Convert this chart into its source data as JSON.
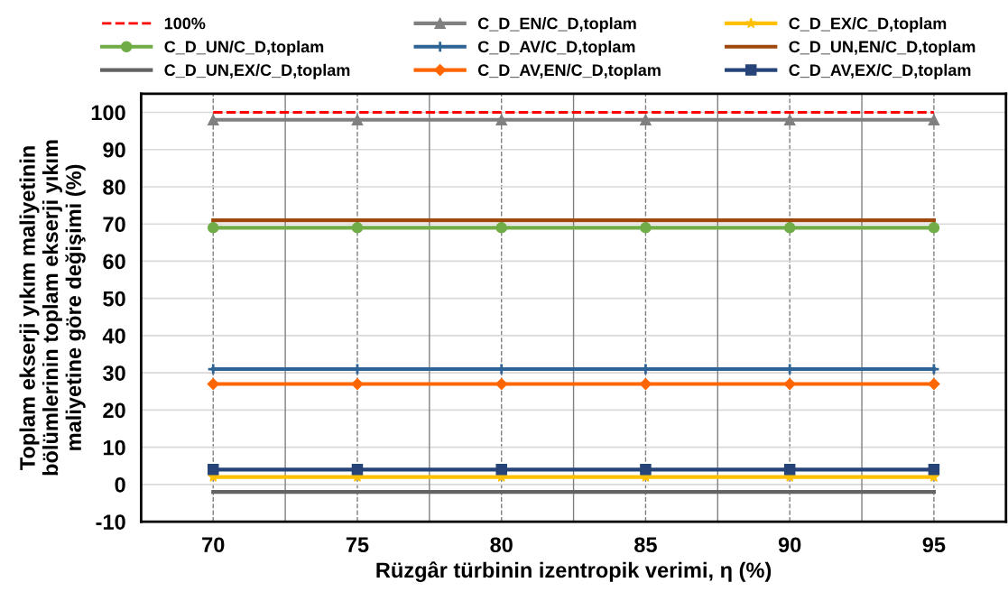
{
  "chart_data": {
    "type": "line",
    "xlabel": "Rüzgâr türbinin izentropik verimi, η (%)",
    "ylabel": "Toplam ekserji yıkım maliyetinin\nbölümlerinin toplam ekserji yıkım\nmaliyetine göre değişimi (%)",
    "x": [
      70,
      75,
      80,
      85,
      90,
      95
    ],
    "xlim": [
      67.5,
      97.5
    ],
    "xticks": [
      70,
      75,
      80,
      85,
      90,
      95
    ],
    "ylim": [
      -10,
      105
    ],
    "yticks": [
      -10,
      0,
      10,
      20,
      30,
      40,
      50,
      60,
      70,
      80,
      90,
      100
    ],
    "grid": true,
    "legend": "top",
    "series": [
      {
        "name": "100%",
        "color": "#ff0000",
        "line_style": "dashed",
        "marker": "none",
        "values": [
          100,
          100,
          100,
          100,
          100,
          100
        ]
      },
      {
        "name": "C_D_UN/C_D,toplam",
        "color": "#70ad47",
        "marker": "circle",
        "values": [
          69,
          69,
          69,
          69,
          69,
          69
        ]
      },
      {
        "name": "C_D_UN,EX/C_D,toplam",
        "color": "#636363",
        "marker": "none",
        "values": [
          -2,
          -2,
          -2,
          -2,
          -2,
          -2
        ]
      },
      {
        "name": "C_D_EN/C_D,toplam",
        "color": "#808080",
        "marker": "triangle",
        "values": [
          98,
          98,
          98,
          98,
          98,
          98
        ]
      },
      {
        "name": "C_D_AV/C_D,toplam",
        "color": "#2e6395",
        "marker": "cross",
        "values": [
          31,
          31,
          31,
          31,
          31,
          31
        ]
      },
      {
        "name": "C_D_AV,EN/C_D,toplam",
        "color": "#ff6600",
        "marker": "diamond",
        "values": [
          27,
          27,
          27,
          27,
          27,
          27
        ]
      },
      {
        "name": "C_D_EX/C_D,toplam",
        "color": "#ffc000",
        "marker": "star",
        "values": [
          2,
          2,
          2,
          2,
          2,
          2
        ]
      },
      {
        "name": "C_D_UN,EN/C_D,toplam",
        "color": "#9e480e",
        "marker": "none",
        "values": [
          71,
          71,
          71,
          71,
          71,
          71
        ]
      },
      {
        "name": "C_D_AV,EX/C_D,toplam",
        "color": "#264478",
        "marker": "square",
        "values": [
          4,
          4,
          4,
          4,
          4,
          4
        ]
      }
    ]
  }
}
